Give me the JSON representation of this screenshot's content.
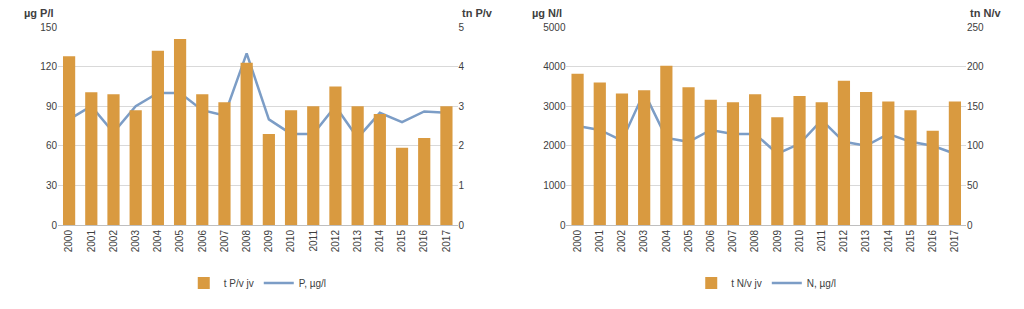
{
  "chart_data": [
    {
      "type": "bar",
      "y_label": "µg P/l",
      "y2_label": "tn P/v",
      "categories": [
        "2000",
        "2001",
        "2002",
        "2003",
        "2004",
        "2005",
        "2006",
        "2007",
        "2008",
        "2009",
        "2010",
        "2011",
        "2012",
        "2013",
        "2014",
        "2015",
        "2016",
        "2017"
      ],
      "series": [
        {
          "name": "t P/v jv",
          "type": "bar",
          "axis": "y2",
          "color": "#D99A40",
          "values": [
            4.26,
            3.35,
            3.3,
            2.9,
            4.4,
            4.7,
            3.3,
            3.1,
            4.1,
            2.3,
            2.9,
            3.0,
            3.5,
            3.0,
            2.8,
            1.95,
            2.2,
            3.0
          ]
        },
        {
          "name": "P, µg/l",
          "type": "line",
          "color": "#7C9DC6",
          "values": [
            80,
            90,
            70,
            90,
            100,
            100,
            87,
            83,
            130,
            80,
            69,
            69,
            90,
            66,
            85,
            78,
            86,
            85
          ]
        }
      ],
      "ylim": [
        0,
        150
      ],
      "yticks": [
        0,
        30,
        60,
        90,
        120,
        150
      ],
      "y2lim": [
        0,
        5
      ],
      "y2ticks": [
        0,
        1,
        2,
        3,
        4,
        5
      ],
      "grid": true,
      "legend": "bottom"
    },
    {
      "type": "bar",
      "y_label": "µg N/l",
      "y2_label": "tn N/v",
      "categories": [
        "2000",
        "2001",
        "2002",
        "2003",
        "2004",
        "2005",
        "2006",
        "2007",
        "2008",
        "2009",
        "2010",
        "2011",
        "2012",
        "2013",
        "2014",
        "2015",
        "2016",
        "2017"
      ],
      "series": [
        {
          "name": "t N/v jv",
          "type": "bar",
          "axis": "y2",
          "color": "#D99A40",
          "values": [
            191,
            180,
            166,
            170,
            201,
            174,
            158,
            155,
            165,
            136,
            163,
            155,
            182,
            168,
            156,
            145,
            119,
            156
          ]
        },
        {
          "name": "N, µg/l",
          "type": "line",
          "color": "#7C9DC6",
          "values": [
            2500,
            2400,
            2130,
            3350,
            2200,
            2100,
            2400,
            2300,
            2300,
            1800,
            2050,
            2650,
            2100,
            2000,
            2300,
            2100,
            2000,
            1800
          ]
        }
      ],
      "ylim": [
        0,
        5000
      ],
      "yticks": [
        0,
        1000,
        2000,
        3000,
        4000,
        5000
      ],
      "y2lim": [
        0,
        250
      ],
      "y2ticks": [
        0,
        50,
        100,
        150,
        200,
        250
      ],
      "grid": true,
      "legend": "bottom"
    }
  ]
}
